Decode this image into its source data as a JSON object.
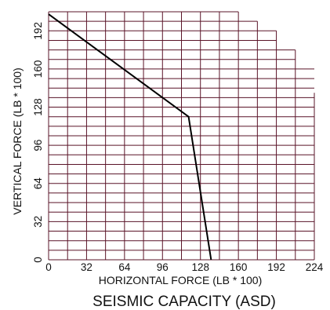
{
  "chart_data": {
    "type": "line",
    "title": "SEISMIC CAPACITY (ASD)",
    "xlabel": "HORIZONTAL FORCE (LB * 100)",
    "ylabel": "VERTICAL FORCE (LB * 100)",
    "xlim": [
      0,
      224
    ],
    "ylim": [
      0,
      208
    ],
    "x_ticks": [
      "0",
      "32",
      "64",
      "96",
      "128",
      "160",
      "192",
      "224"
    ],
    "y_ticks": [
      "0",
      "32",
      "64",
      "96",
      "128",
      "160",
      "192"
    ],
    "grid": true,
    "grid_step": 16,
    "grid_color": "#5a1428",
    "line_color": "#000000",
    "series": [
      {
        "x": [
          0,
          118,
          137
        ],
        "y": [
          206,
          120,
          0
        ]
      }
    ]
  }
}
